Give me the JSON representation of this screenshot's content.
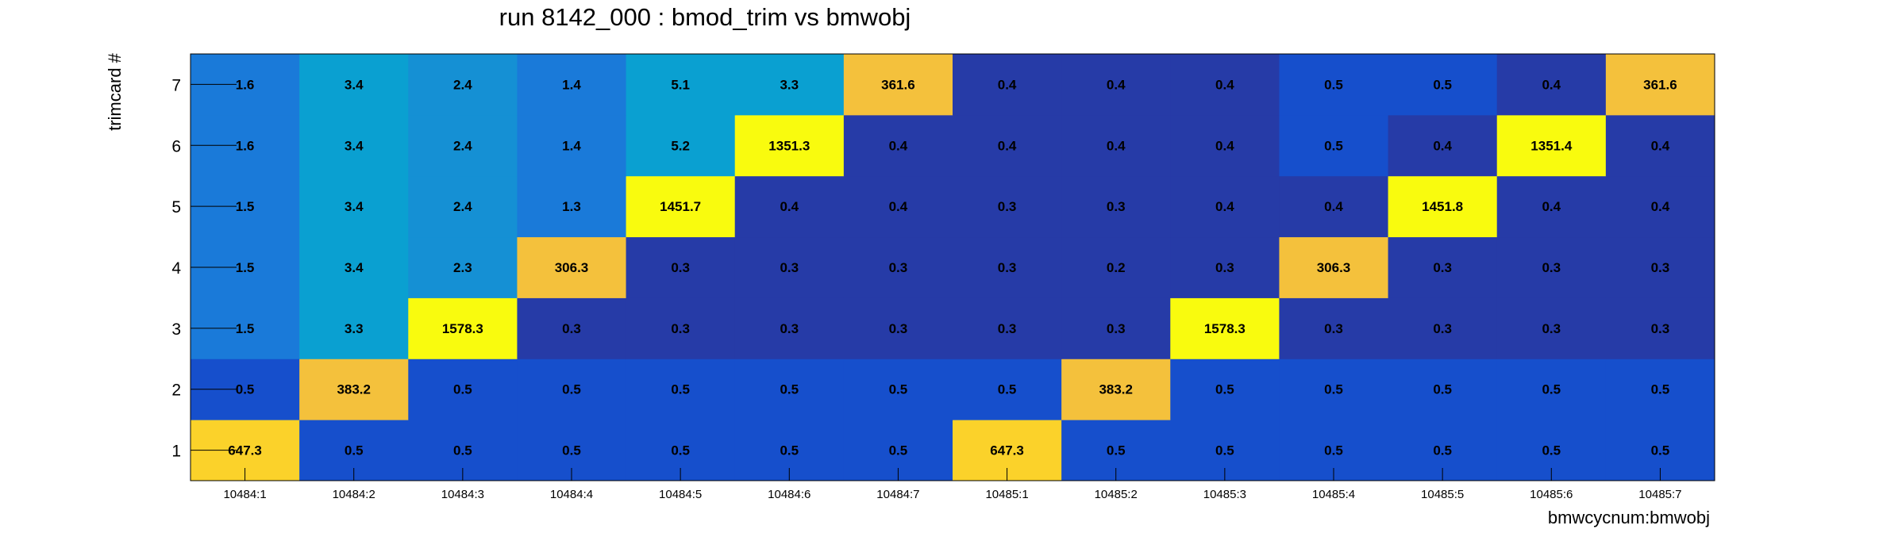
{
  "chart_data": {
    "type": "heatmap",
    "title": "run 8142_000 : bmod_trim vs bmwobj",
    "xlabel": "bmwcycnum:bmwobj",
    "ylabel": "trimcard #",
    "x_categories": [
      "10484:1",
      "10484:2",
      "10484:3",
      "10484:4",
      "10484:5",
      "10484:6",
      "10484:7",
      "10485:1",
      "10485:2",
      "10485:3",
      "10485:4",
      "10485:5",
      "10485:6",
      "10485:7"
    ],
    "y_categories": [
      "1",
      "2",
      "3",
      "4",
      "5",
      "6",
      "7"
    ],
    "values": [
      [
        647.3,
        0.5,
        0.5,
        0.5,
        0.5,
        0.5,
        0.5,
        647.3,
        0.5,
        0.5,
        0.5,
        0.5,
        0.5,
        0.5
      ],
      [
        0.5,
        383.2,
        0.5,
        0.5,
        0.5,
        0.5,
        0.5,
        0.5,
        383.2,
        0.5,
        0.5,
        0.5,
        0.5,
        0.5
      ],
      [
        1.5,
        3.3,
        1578.3,
        0.3,
        0.3,
        0.3,
        0.3,
        0.3,
        0.3,
        1578.3,
        0.3,
        0.3,
        0.3,
        0.3
      ],
      [
        1.5,
        3.4,
        2.3,
        306.3,
        0.3,
        0.3,
        0.3,
        0.3,
        0.2,
        0.3,
        306.3,
        0.3,
        0.3,
        0.3
      ],
      [
        1.5,
        3.4,
        2.4,
        1.3,
        1451.7,
        0.4,
        0.4,
        0.3,
        0.3,
        0.4,
        0.4,
        1451.8,
        0.4,
        0.4
      ],
      [
        1.6,
        3.4,
        2.4,
        1.4,
        5.2,
        1351.3,
        0.4,
        0.4,
        0.4,
        0.4,
        0.5,
        0.4,
        1351.4,
        0.4
      ],
      [
        1.6,
        3.4,
        2.4,
        1.4,
        5.1,
        3.3,
        361.6,
        0.4,
        0.4,
        0.4,
        0.5,
        0.5,
        0.4,
        361.6
      ]
    ],
    "colors": {
      "very_low": "#263ba7",
      "low": "#164fcc",
      "low_mid": "#1a7ad9",
      "mid": "#1590d4",
      "mid_high": "#0aa0d1",
      "high": "#f4c13c",
      "high_alt": "#fbd22a",
      "max": "#f9fb0e"
    }
  }
}
